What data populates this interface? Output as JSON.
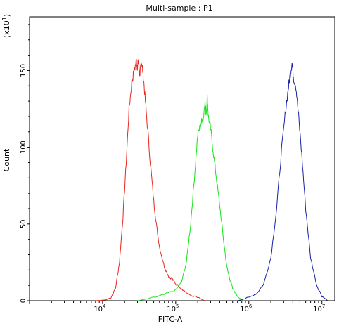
{
  "chart_data": {
    "type": "line",
    "title": "Multi-sample : P1",
    "xlabel": "FITC-A",
    "ylabel": "Count",
    "y_multiplier": "(x10",
    "y_multiplier_exp": "1",
    "y_multiplier_close": ")",
    "xscale": "log",
    "xlim": [
      1000,
      15000000
    ],
    "ylim": [
      0,
      185
    ],
    "x_ticks": [
      {
        "base": "10",
        "exp": "4",
        "value": 10000
      },
      {
        "base": "10",
        "exp": "5",
        "value": 100000
      },
      {
        "base": "10",
        "exp": "6",
        "value": 1000000
      },
      {
        "base": "10",
        "exp": "7",
        "value": 10000000
      }
    ],
    "y_ticks": [
      0,
      50,
      100,
      150
    ],
    "grid": false,
    "legend": "none",
    "series": [
      {
        "color": "#e8271f",
        "x": [
          8000,
          11000,
          13000,
          15000,
          17000,
          19000,
          21000,
          23000,
          25000,
          27000,
          29000,
          30000,
          31000,
          32000,
          33000,
          34000,
          35000,
          37000,
          40000,
          45000,
          50000,
          55000,
          60000,
          70000,
          80000,
          90000,
          100000,
          120000,
          150000,
          200000,
          250000
        ],
        "y": [
          0,
          0.5,
          2,
          8,
          25,
          55,
          90,
          125,
          142,
          150,
          156,
          152,
          157,
          148,
          150,
          156,
          152,
          140,
          120,
          90,
          65,
          48,
          35,
          22,
          16,
          14,
          11,
          8,
          4,
          2,
          0
        ]
      },
      {
        "color": "#19e11a",
        "x": [
          30000,
          50000,
          70000,
          100000,
          120000,
          140000,
          160000,
          180000,
          200000,
          220000,
          240000,
          250000,
          260000,
          270000,
          280000,
          300000,
          330000,
          360000,
          400000,
          450000,
          500000,
          550000,
          600000,
          700000,
          850000
        ],
        "y": [
          0,
          2,
          4,
          7,
          12,
          25,
          50,
          80,
          108,
          115,
          120,
          130,
          122,
          132,
          120,
          112,
          95,
          80,
          62,
          40,
          22,
          14,
          8,
          3,
          0
        ]
      },
      {
        "color": "#1822a3",
        "x": [
          700000,
          1000000,
          1300000,
          1600000,
          2000000,
          2400000,
          2800000,
          3200000,
          3500000,
          3700000,
          3900000,
          4100000,
          4400000,
          4800000,
          5300000,
          6000000,
          7000000,
          8500000,
          10000000,
          12000000
        ],
        "y": [
          0,
          2,
          5,
          11,
          28,
          60,
          98,
          125,
          140,
          148,
          155,
          145,
          140,
          120,
          95,
          60,
          28,
          10,
          3,
          0
        ]
      }
    ]
  }
}
